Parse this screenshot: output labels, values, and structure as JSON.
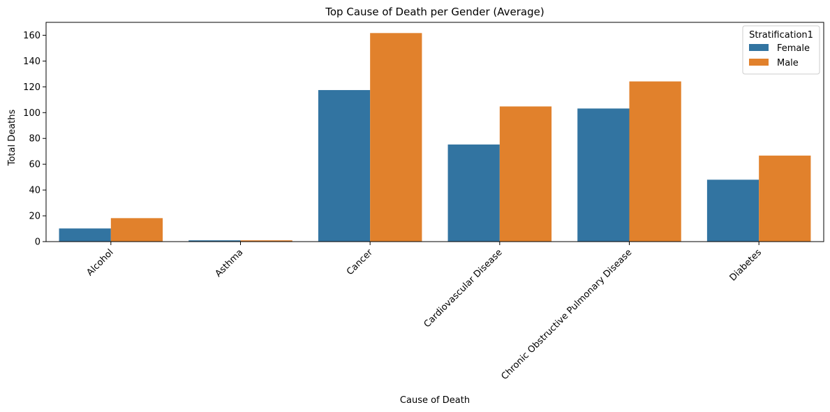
{
  "chart_data": {
    "type": "bar",
    "title": "Top Cause of Death per Gender (Average)",
    "xlabel": "Cause of Death",
    "ylabel": "Total Deaths",
    "categories": [
      "Alcohol",
      "Asthma",
      "Cancer",
      "Cardiovascular Disease",
      "Chronic Obstructive Pulmonary Disease",
      "Diabetes"
    ],
    "series": [
      {
        "name": "Female",
        "color": "#3274a1",
        "values": [
          10.2,
          1.0,
          117.5,
          75.3,
          103.2,
          48.0
        ]
      },
      {
        "name": "Male",
        "color": "#e1812c",
        "values": [
          18.2,
          1.0,
          161.7,
          104.8,
          124.2,
          66.7
        ]
      }
    ],
    "ylim": [
      0,
      170
    ],
    "yticks": [
      0,
      20,
      40,
      60,
      80,
      100,
      120,
      140,
      160
    ],
    "legend": {
      "title": "Stratification1",
      "placement": "top-right"
    },
    "grid": false
  }
}
